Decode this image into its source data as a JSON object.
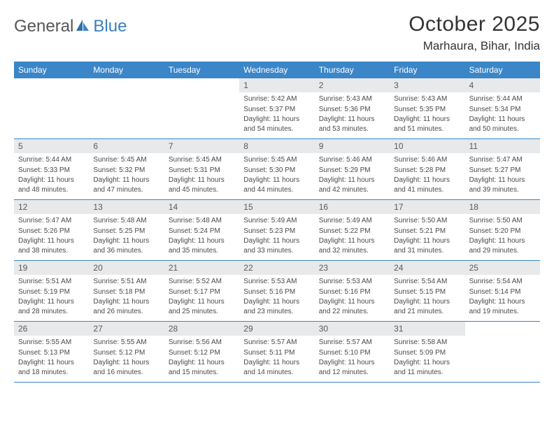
{
  "logo": {
    "part1": "General",
    "part2": "Blue"
  },
  "title": "October 2025",
  "location": "Marhaura, Bihar, India",
  "colors": {
    "header_bg": "#3a86c8",
    "header_text": "#ffffff",
    "daynum_bg": "#e8e9ea",
    "border": "#3a86c8",
    "logo_gray": "#565656",
    "logo_blue": "#3a7fc4"
  },
  "day_names": [
    "Sunday",
    "Monday",
    "Tuesday",
    "Wednesday",
    "Thursday",
    "Friday",
    "Saturday"
  ],
  "weeks": [
    [
      {
        "empty": true
      },
      {
        "empty": true
      },
      {
        "empty": true
      },
      {
        "n": "1",
        "sr": "5:42 AM",
        "ss": "5:37 PM",
        "dl": "11 hours and 54 minutes."
      },
      {
        "n": "2",
        "sr": "5:43 AM",
        "ss": "5:36 PM",
        "dl": "11 hours and 53 minutes."
      },
      {
        "n": "3",
        "sr": "5:43 AM",
        "ss": "5:35 PM",
        "dl": "11 hours and 51 minutes."
      },
      {
        "n": "4",
        "sr": "5:44 AM",
        "ss": "5:34 PM",
        "dl": "11 hours and 50 minutes."
      }
    ],
    [
      {
        "n": "5",
        "sr": "5:44 AM",
        "ss": "5:33 PM",
        "dl": "11 hours and 48 minutes."
      },
      {
        "n": "6",
        "sr": "5:45 AM",
        "ss": "5:32 PM",
        "dl": "11 hours and 47 minutes."
      },
      {
        "n": "7",
        "sr": "5:45 AM",
        "ss": "5:31 PM",
        "dl": "11 hours and 45 minutes."
      },
      {
        "n": "8",
        "sr": "5:45 AM",
        "ss": "5:30 PM",
        "dl": "11 hours and 44 minutes."
      },
      {
        "n": "9",
        "sr": "5:46 AM",
        "ss": "5:29 PM",
        "dl": "11 hours and 42 minutes."
      },
      {
        "n": "10",
        "sr": "5:46 AM",
        "ss": "5:28 PM",
        "dl": "11 hours and 41 minutes."
      },
      {
        "n": "11",
        "sr": "5:47 AM",
        "ss": "5:27 PM",
        "dl": "11 hours and 39 minutes."
      }
    ],
    [
      {
        "n": "12",
        "sr": "5:47 AM",
        "ss": "5:26 PM",
        "dl": "11 hours and 38 minutes."
      },
      {
        "n": "13",
        "sr": "5:48 AM",
        "ss": "5:25 PM",
        "dl": "11 hours and 36 minutes."
      },
      {
        "n": "14",
        "sr": "5:48 AM",
        "ss": "5:24 PM",
        "dl": "11 hours and 35 minutes."
      },
      {
        "n": "15",
        "sr": "5:49 AM",
        "ss": "5:23 PM",
        "dl": "11 hours and 33 minutes."
      },
      {
        "n": "16",
        "sr": "5:49 AM",
        "ss": "5:22 PM",
        "dl": "11 hours and 32 minutes."
      },
      {
        "n": "17",
        "sr": "5:50 AM",
        "ss": "5:21 PM",
        "dl": "11 hours and 31 minutes."
      },
      {
        "n": "18",
        "sr": "5:50 AM",
        "ss": "5:20 PM",
        "dl": "11 hours and 29 minutes."
      }
    ],
    [
      {
        "n": "19",
        "sr": "5:51 AM",
        "ss": "5:19 PM",
        "dl": "11 hours and 28 minutes."
      },
      {
        "n": "20",
        "sr": "5:51 AM",
        "ss": "5:18 PM",
        "dl": "11 hours and 26 minutes."
      },
      {
        "n": "21",
        "sr": "5:52 AM",
        "ss": "5:17 PM",
        "dl": "11 hours and 25 minutes."
      },
      {
        "n": "22",
        "sr": "5:53 AM",
        "ss": "5:16 PM",
        "dl": "11 hours and 23 minutes."
      },
      {
        "n": "23",
        "sr": "5:53 AM",
        "ss": "5:16 PM",
        "dl": "11 hours and 22 minutes."
      },
      {
        "n": "24",
        "sr": "5:54 AM",
        "ss": "5:15 PM",
        "dl": "11 hours and 21 minutes."
      },
      {
        "n": "25",
        "sr": "5:54 AM",
        "ss": "5:14 PM",
        "dl": "11 hours and 19 minutes."
      }
    ],
    [
      {
        "n": "26",
        "sr": "5:55 AM",
        "ss": "5:13 PM",
        "dl": "11 hours and 18 minutes."
      },
      {
        "n": "27",
        "sr": "5:55 AM",
        "ss": "5:12 PM",
        "dl": "11 hours and 16 minutes."
      },
      {
        "n": "28",
        "sr": "5:56 AM",
        "ss": "5:12 PM",
        "dl": "11 hours and 15 minutes."
      },
      {
        "n": "29",
        "sr": "5:57 AM",
        "ss": "5:11 PM",
        "dl": "11 hours and 14 minutes."
      },
      {
        "n": "30",
        "sr": "5:57 AM",
        "ss": "5:10 PM",
        "dl": "11 hours and 12 minutes."
      },
      {
        "n": "31",
        "sr": "5:58 AM",
        "ss": "5:09 PM",
        "dl": "11 hours and 11 minutes."
      },
      {
        "empty": true
      }
    ]
  ],
  "labels": {
    "sunrise": "Sunrise:",
    "sunset": "Sunset:",
    "daylight": "Daylight:"
  }
}
